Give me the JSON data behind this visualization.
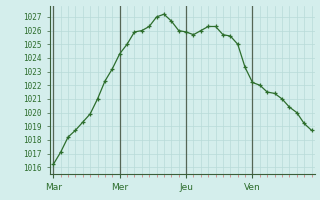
{
  "x_values": [
    0,
    1,
    2,
    3,
    4,
    5,
    6,
    7,
    8,
    9,
    10,
    11,
    12,
    13,
    14,
    15,
    16,
    17,
    18,
    19,
    20,
    21,
    22,
    23,
    24,
    25,
    26,
    27,
    28,
    29,
    30,
    31,
    32,
    33,
    34,
    35
  ],
  "y_values": [
    1016.2,
    1017.1,
    1018.2,
    1018.7,
    1019.3,
    1019.9,
    1021.0,
    1022.3,
    1023.2,
    1024.3,
    1025.0,
    1025.9,
    1026.0,
    1026.3,
    1027.0,
    1027.2,
    1026.7,
    1026.0,
    1025.9,
    1025.7,
    1026.0,
    1026.3,
    1026.3,
    1025.7,
    1025.6,
    1025.0,
    1023.3,
    1022.2,
    1022.0,
    1021.5,
    1021.4,
    1021.0,
    1020.4,
    1020.0,
    1019.2,
    1018.7
  ],
  "day_labels": [
    "Mar",
    "Mer",
    "Jeu",
    "Ven"
  ],
  "day_positions": [
    0,
    9,
    18,
    27
  ],
  "ylim_min": 1015.5,
  "ylim_max": 1027.8,
  "bg_color": "#d4eeec",
  "grid_color": "#b8dbd8",
  "line_color": "#2d6e2d",
  "marker_color": "#2d6e2d",
  "axis_label_color": "#2d6e2d",
  "spine_color": "#3a5f3a",
  "day_line_color": "#556655",
  "tick_color": "#cc8888"
}
